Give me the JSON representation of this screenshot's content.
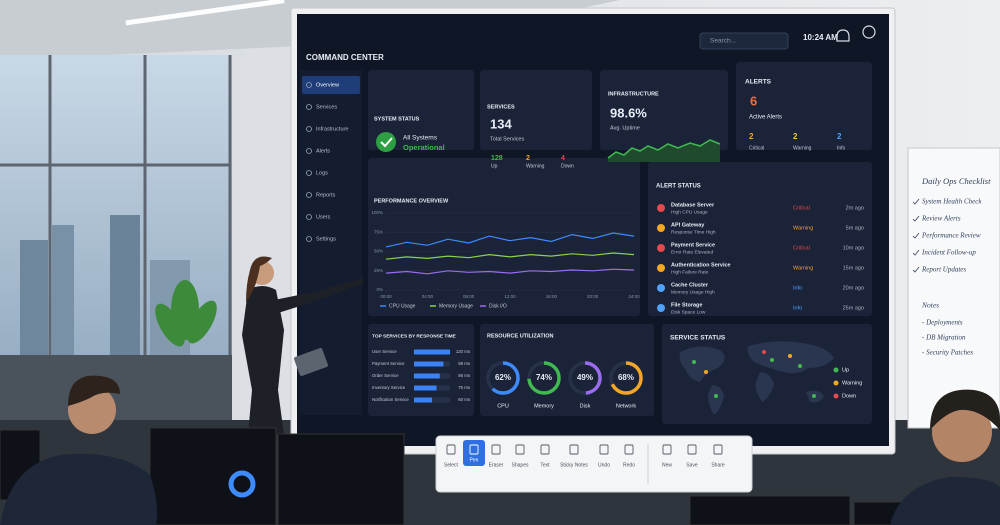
{
  "header": {
    "title": "COMMAND CENTER",
    "search": "Search...",
    "time": "10:24 AM"
  },
  "nav": [
    "Overview",
    "Services",
    "Infrastructure",
    "Alerts",
    "Logs",
    "Reports",
    "Users",
    "Settings"
  ],
  "system_status": {
    "title": "SYSTEM STATUS",
    "status": "All Systems",
    "state": "Operational"
  },
  "services": {
    "title": "SERVICES",
    "total": 134,
    "total_label": "Total Services",
    "counts": [
      {
        "value": 128,
        "label": "Up",
        "color": "#3fb950"
      },
      {
        "value": 2,
        "label": "Warning",
        "color": "#f5a623"
      },
      {
        "value": 4,
        "label": "Down",
        "color": "#e5484d"
      }
    ]
  },
  "infrastructure": {
    "title": "INFRASTRUCTURE",
    "uptime": "98.6%",
    "uptime_label": "Avg. Uptime"
  },
  "alerts": {
    "title": "ALERTS",
    "total": 6,
    "total_label": "Active Alerts",
    "counts": [
      {
        "value": 2,
        "label": "Critical",
        "color": "#f5a623"
      },
      {
        "value": 2,
        "label": "Warning",
        "color": "#f5c542"
      },
      {
        "value": 2,
        "label": "Info",
        "color": "#4fa3ff"
      }
    ]
  },
  "chart_data": {
    "type": "line",
    "title": "PERFORMANCE OVERVIEW",
    "x": [
      0,
      2,
      4,
      6,
      8,
      10,
      12,
      14,
      16,
      18,
      20,
      22,
      24
    ],
    "series": [
      {
        "name": "CPU Usage",
        "color": "#3d8bfd",
        "values": [
          56,
          62,
          58,
          66,
          61,
          70,
          64,
          68,
          63,
          72,
          67,
          74,
          70
        ]
      },
      {
        "name": "Memory Usage",
        "color": "#8bd44a",
        "values": [
          40,
          43,
          41,
          44,
          42,
          46,
          43,
          46,
          44,
          47,
          45,
          48,
          46
        ]
      },
      {
        "name": "Disk I/O",
        "color": "#9b6cf0",
        "values": [
          22,
          24,
          21,
          25,
          23,
          24,
          22,
          25,
          24,
          26,
          25,
          27,
          26
        ]
      }
    ],
    "xlim": [
      0,
      24
    ],
    "xticks": [
      {
        "value": 0,
        "label": "00:00"
      },
      {
        "value": 4,
        "label": "04:00"
      },
      {
        "value": 8,
        "label": "08:00"
      },
      {
        "value": 12,
        "label": "12:00"
      },
      {
        "value": 16,
        "label": "16:00"
      },
      {
        "value": 20,
        "label": "20:00"
      },
      {
        "value": 24,
        "label": "24:00"
      }
    ],
    "ylim": [
      0,
      100
    ],
    "yticks": [
      {
        "value": 0,
        "label": "0%"
      },
      {
        "value": 25,
        "label": "25%"
      },
      {
        "value": 50,
        "label": "50%"
      },
      {
        "value": 75,
        "label": "75%"
      },
      {
        "value": 100,
        "label": "100%"
      }
    ],
    "grid": true,
    "legend": "bottom"
  },
  "alert_status": {
    "title": "ALERT STATUS",
    "rows": [
      {
        "name": "Database Server",
        "detail": "High CPU Usage",
        "severity": "Critical",
        "time": "2m ago",
        "color": "#e5484d"
      },
      {
        "name": "API Gateway",
        "detail": "Response Time High",
        "severity": "Warning",
        "time": "5m ago",
        "color": "#f5a623"
      },
      {
        "name": "Payment Service",
        "detail": "Error Rate Elevated",
        "severity": "Critical",
        "time": "10m ago",
        "color": "#e5484d"
      },
      {
        "name": "Authentication Service",
        "detail": "High Failure Rate",
        "severity": "Warning",
        "time": "15m ago",
        "color": "#f5a623"
      },
      {
        "name": "Cache Cluster",
        "detail": "Memory Usage High",
        "severity": "Info",
        "time": "20m ago",
        "color": "#4fa3ff"
      },
      {
        "name": "File Storage",
        "detail": "Disk Space Low",
        "severity": "Info",
        "time": "25m ago",
        "color": "#4fa3ff"
      }
    ]
  },
  "top_services": {
    "title": "TOP SERVICES BY RESPONSE TIME",
    "color": "#3b82f6",
    "categories": [
      "User Service",
      "Payment Service",
      "Order Service",
      "Inventory Service",
      "Notification Service"
    ],
    "values": [
      120,
      98,
      86,
      75,
      60
    ],
    "value_labels": [
      "120 ms",
      "98 ms",
      "86 ms",
      "75 ms",
      "60 ms"
    ]
  },
  "resource_utilization": {
    "title": "RESOURCE UTILIZATION",
    "categories": [
      "CPU",
      "Memory",
      "Disk",
      "Network"
    ],
    "values": [
      62,
      74,
      49,
      68
    ],
    "value_labels": [
      "62%",
      "74%",
      "49%",
      "68%"
    ],
    "colors": [
      "#3d8bfd",
      "#3fb950",
      "#9b6cf0",
      "#f5a623"
    ]
  },
  "service_status": {
    "title": "SERVICE STATUS",
    "legend": [
      {
        "label": "Up",
        "color": "#3fb950"
      },
      {
        "label": "Warning",
        "color": "#f5a623"
      },
      {
        "label": "Down",
        "color": "#e5484d"
      }
    ]
  },
  "toolbar": [
    "Select",
    "Pen",
    "Eraser",
    "Shapes",
    "Text",
    "Sticky Notes",
    "Undo",
    "Redo",
    "New",
    "Save",
    "Share"
  ],
  "whiteboard": {
    "title": "Daily Ops Checklist",
    "items": [
      "System Health Check",
      "Review Alerts",
      "Performance Review",
      "Incident Follow-up",
      "Report Updates"
    ],
    "notes_title": "Notes",
    "notes": [
      "- Deployments",
      "- DB Migration",
      "- Security Patches"
    ]
  }
}
